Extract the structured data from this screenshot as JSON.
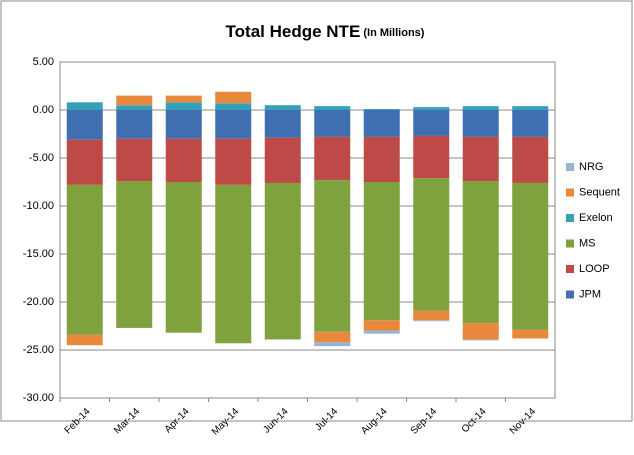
{
  "chart_data": {
    "type": "stacked_bar",
    "title": "Total Hedge NTE",
    "subtitle": "(In Millions)",
    "categories": [
      "Feb-14",
      "Mar-14",
      "Apr-14",
      "May-14",
      "Jun-14",
      "Jul-14",
      "Aug-14",
      "Sep-14",
      "Oct-14",
      "Nov-14"
    ],
    "series": [
      {
        "name": "JPM",
        "color": "#3f6fb0",
        "values": [
          -3.1,
          -3.0,
          -3.0,
          -3.0,
          -2.9,
          -2.8,
          -2.8,
          -2.7,
          -2.8,
          -2.8
        ]
      },
      {
        "name": "LOOP",
        "color": "#bd4a47",
        "values": [
          -4.7,
          -4.4,
          -4.5,
          -4.8,
          -4.7,
          -4.5,
          -4.7,
          -4.4,
          -4.6,
          -4.8
        ]
      },
      {
        "name": "MS",
        "color": "#7fa23f",
        "values": [
          -15.6,
          -15.3,
          -15.7,
          -16.5,
          -16.3,
          -15.8,
          -14.4,
          -13.8,
          -14.8,
          -15.3
        ]
      },
      {
        "name": "Exelon",
        "color": "#35a0b8",
        "values": [
          0.8,
          0.5,
          0.8,
          0.7,
          0.5,
          0.4,
          0.1,
          0.3,
          0.4,
          0.4
        ]
      },
      {
        "name": "Sequent",
        "color": "#e8883a",
        "values": [
          -1.1,
          1.0,
          0.7,
          1.2,
          0,
          -1.1,
          -1.1,
          -1.0,
          -1.7,
          -0.9
        ]
      },
      {
        "name": "NRG",
        "color": "#95b3d7",
        "values": [
          0,
          0,
          0,
          0,
          0,
          -0.4,
          -0.3,
          -0.1,
          -0.1,
          0
        ]
      }
    ],
    "ylim": [
      -30,
      5
    ],
    "yticks": [
      {
        "value": -30,
        "label": "-30.00"
      },
      {
        "value": -25,
        "label": "-25.00"
      },
      {
        "value": -20,
        "label": "-20.00"
      },
      {
        "value": -15,
        "label": "-15.00"
      },
      {
        "value": -10,
        "label": "-10.00"
      },
      {
        "value": -5,
        "label": "-5.00"
      },
      {
        "value": 0,
        "label": "0.00"
      },
      {
        "value": 5,
        "label": "5.00"
      }
    ],
    "grid": true,
    "legend": "right"
  }
}
